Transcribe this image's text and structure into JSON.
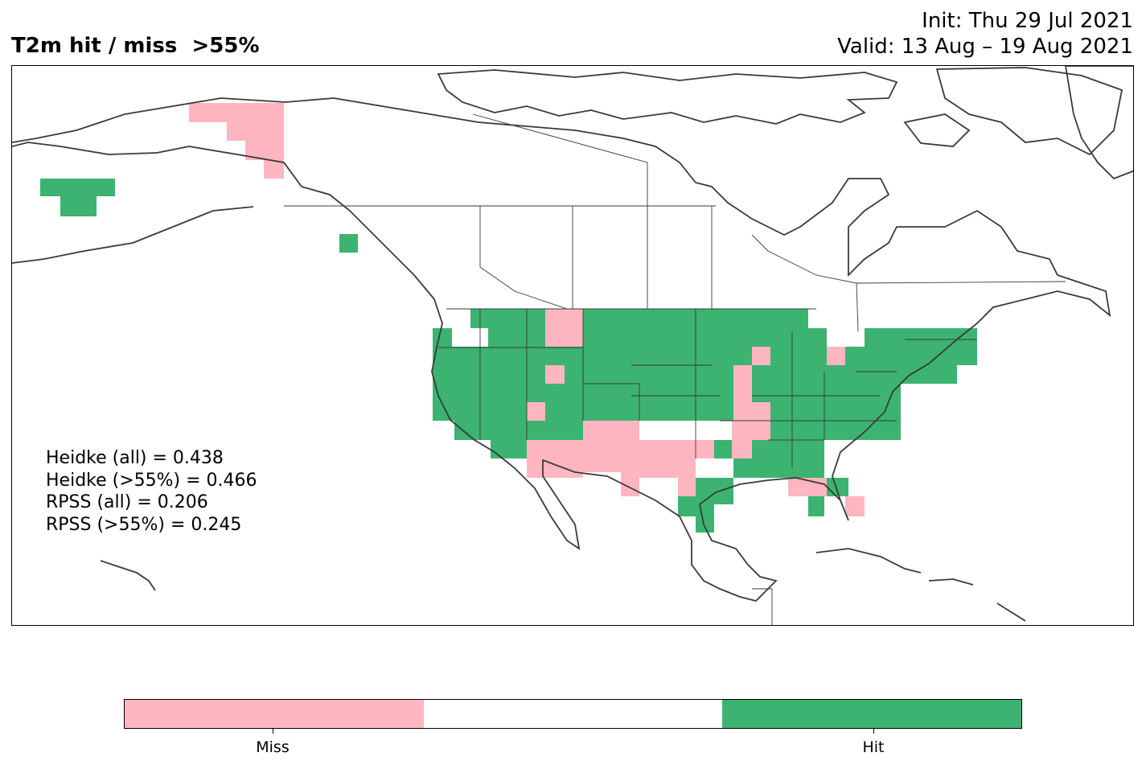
{
  "header": {
    "title": "T2m hit / miss  >55%",
    "init": "Init: Thu 29 Jul 2021",
    "valid": "Valid: 13 Aug – 19 Aug 2021"
  },
  "stats": [
    "Heidke (all) = 0.438",
    "Heidke (>55%) = 0.466",
    "RPSS (all) = 0.206",
    "RPSS (>55%) = 0.245"
  ],
  "legend": {
    "miss_label": "Miss",
    "hit_label": "Hit"
  },
  "colors": {
    "miss": "#ffb6c1",
    "neutral": "#ffffff",
    "hit": "#3cb371",
    "coastline": "#3a3a3a"
  },
  "map_layers": {
    "hit_regions": [
      "Alaska (southwest)",
      "Alaska panhandle",
      "Pacific Northwest",
      "Northern Rockies",
      "Northern Plains",
      "Great Lakes",
      "Northeast",
      "Southeast",
      "Gulf Coast"
    ],
    "miss_regions": [
      "Alaska (north)",
      "Idaho / Montana border",
      "Utah",
      "Southwest",
      "Texas / Oklahoma",
      "Mississippi valley",
      "Florida panhandle",
      "Michigan"
    ]
  }
}
